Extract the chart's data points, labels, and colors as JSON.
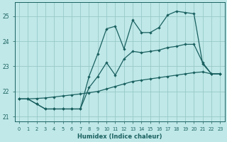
{
  "xlabel": "Humidex (Indice chaleur)",
  "bg_color": "#c0e8e8",
  "grid_color": "#98c8c8",
  "line_color": "#1a6060",
  "x_ticks": [
    0,
    1,
    2,
    3,
    4,
    5,
    6,
    7,
    8,
    9,
    10,
    11,
    12,
    13,
    14,
    15,
    16,
    17,
    18,
    19,
    20,
    21,
    22,
    23
  ],
  "ylim": [
    20.8,
    25.55
  ],
  "yticks": [
    21,
    22,
    23,
    24,
    25
  ],
  "line1_x": [
    0,
    1,
    2,
    3,
    4,
    5,
    6,
    7,
    8,
    9,
    10,
    11,
    12,
    13,
    14,
    15,
    16,
    17,
    18,
    19,
    20,
    21,
    22,
    23
  ],
  "line1_y": [
    21.7,
    21.7,
    21.5,
    21.3,
    21.3,
    21.3,
    21.3,
    21.3,
    22.6,
    23.5,
    24.5,
    24.6,
    23.7,
    24.85,
    24.35,
    24.35,
    24.55,
    25.05,
    25.2,
    25.15,
    25.1,
    23.1,
    22.7,
    22.7
  ],
  "line2_x": [
    0,
    1,
    2,
    3,
    4,
    5,
    6,
    7,
    8,
    9,
    10,
    11,
    12,
    13,
    14,
    15,
    16,
    17,
    18,
    19,
    20,
    21,
    22,
    23
  ],
  "line2_y": [
    21.7,
    21.7,
    21.72,
    21.74,
    21.78,
    21.82,
    21.86,
    21.9,
    21.95,
    22.0,
    22.1,
    22.2,
    22.3,
    22.4,
    22.45,
    22.5,
    22.55,
    22.6,
    22.65,
    22.7,
    22.75,
    22.78,
    22.7,
    22.7
  ],
  "line3_x": [
    0,
    1,
    2,
    3,
    4,
    5,
    6,
    7,
    8,
    9,
    10,
    11,
    12,
    13,
    14,
    15,
    16,
    17,
    18,
    19,
    20,
    21,
    22,
    23
  ],
  "line3_y": [
    21.7,
    21.7,
    21.5,
    21.3,
    21.3,
    21.3,
    21.3,
    21.3,
    22.15,
    22.6,
    23.15,
    22.65,
    23.3,
    23.6,
    23.55,
    23.6,
    23.65,
    23.75,
    23.8,
    23.88,
    23.88,
    23.15,
    22.7,
    22.7
  ]
}
